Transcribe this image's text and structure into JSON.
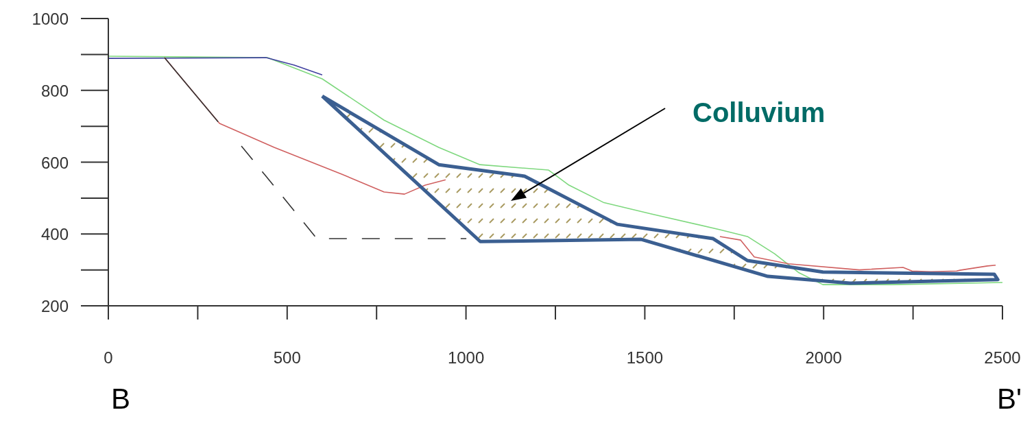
{
  "chart_data": {
    "type": "line",
    "xlim": [
      0,
      2500
    ],
    "xticks": [
      0,
      500,
      1000,
      1500,
      2000,
      2500
    ],
    "ylim": [
      200,
      1000
    ],
    "yticks": [
      200,
      400,
      600,
      800,
      1000
    ],
    "marker": "none",
    "series": [
      {
        "color": "#7ed87e",
        "x": [
          0,
          445,
          598,
          771,
          924,
          1039,
          1231,
          1288,
          1384,
          1518,
          1710,
          1787,
          1863,
          1931,
          1998,
          2189,
          2500
        ],
        "values": [
          895,
          891,
          832,
          717,
          641,
          593,
          578,
          536,
          488,
          456,
          412,
          393,
          345,
          292,
          259,
          259,
          265
        ]
      },
      {
        "color": "#4040a0",
        "x": [
          0,
          441,
          520,
          598
        ],
        "values": [
          889,
          891,
          870,
          843
        ]
      },
      {
        "color": "#d06060",
        "x": [
          157,
          311,
          464,
          656,
          771,
          828,
          886,
          943,
          1300,
          1710,
          1768,
          1806,
          1902,
          2100,
          2222,
          2247,
          2300,
          2372,
          2381,
          2458,
          2481
        ],
        "values": [
          891,
          708,
          641,
          565,
          517,
          511,
          536,
          551,
          null,
          393,
          383,
          336,
          317,
          300,
          307,
          297,
          295,
          297,
          299,
          311,
          313
        ]
      },
      {
        "color": "#333333",
        "x": [
          157,
          307
        ],
        "values": [
          891,
          712
        ]
      },
      {
        "color": "#333333",
        "line_style": "dashed",
        "x": [
          372,
          583,
          1001
        ],
        "values": [
          645,
          387,
          387
        ]
      },
      {
        "type": "area",
        "color": "#3b5f91",
        "x": [
          598,
          924,
          1164,
          1423,
          1691,
          1787,
          1998,
          2477,
          2487,
          2074,
          1844,
          1490,
          1040,
          598
        ],
        "values": [
          784,
          593,
          561,
          427,
          387,
          326,
          294,
          288,
          273,
          263,
          282,
          385,
          379,
          784
        ]
      }
    ],
    "annotations": [
      "Colluvium",
      "B",
      "B'"
    ]
  }
}
